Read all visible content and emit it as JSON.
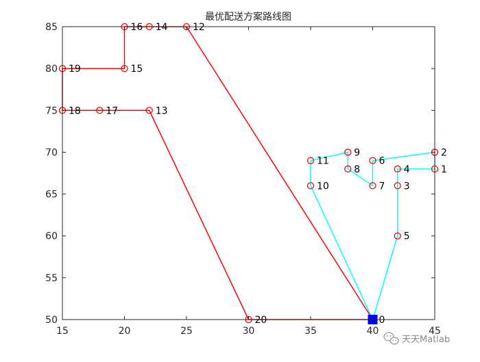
{
  "chart_data": {
    "type": "line",
    "title": "最优配送方案路线图",
    "xlabel": "",
    "ylabel": "",
    "xlim": [
      15,
      45
    ],
    "ylim": [
      50,
      85
    ],
    "x_ticks": [
      15,
      20,
      25,
      30,
      35,
      40,
      45
    ],
    "y_ticks": [
      50,
      55,
      60,
      65,
      70,
      75,
      80,
      85
    ],
    "grid": false,
    "legend": "none",
    "depot": {
      "label": "0",
      "x": 40,
      "y": 50,
      "color": "#0000ff"
    },
    "points": [
      {
        "label": "1",
        "x": 45,
        "y": 68
      },
      {
        "label": "2",
        "x": 45,
        "y": 70
      },
      {
        "label": "3",
        "x": 42,
        "y": 66
      },
      {
        "label": "4",
        "x": 42,
        "y": 68
      },
      {
        "label": "5",
        "x": 42,
        "y": 60
      },
      {
        "label": "6",
        "x": 40,
        "y": 69
      },
      {
        "label": "7",
        "x": 40,
        "y": 66
      },
      {
        "label": "8",
        "x": 38,
        "y": 68
      },
      {
        "label": "9",
        "x": 38,
        "y": 70
      },
      {
        "label": "10",
        "x": 35,
        "y": 66
      },
      {
        "label": "11",
        "x": 35,
        "y": 69
      },
      {
        "label": "12",
        "x": 25,
        "y": 85
      },
      {
        "label": "13",
        "x": 22,
        "y": 75
      },
      {
        "label": "14",
        "x": 22,
        "y": 85
      },
      {
        "label": "15",
        "x": 20,
        "y": 80
      },
      {
        "label": "16",
        "x": 20,
        "y": 85
      },
      {
        "label": "17",
        "x": 18,
        "y": 75
      },
      {
        "label": "18",
        "x": 15,
        "y": 75
      },
      {
        "label": "19",
        "x": 15,
        "y": 80
      },
      {
        "label": "20",
        "x": 30,
        "y": 50
      }
    ],
    "series": [
      {
        "color": "#00ffff",
        "route": [
          "0",
          "5",
          "3",
          "4",
          "1",
          "2",
          "6",
          "7",
          "8",
          "9",
          "11",
          "10",
          "0"
        ]
      },
      {
        "color": "#ff0000",
        "route": [
          "0",
          "12",
          "14",
          "16",
          "15",
          "19",
          "18",
          "17",
          "13",
          "20",
          "0"
        ]
      }
    ],
    "marker_color": "#ff0000"
  },
  "watermark": {
    "icon": "wechat-icon",
    "text": "天天Matlab"
  }
}
